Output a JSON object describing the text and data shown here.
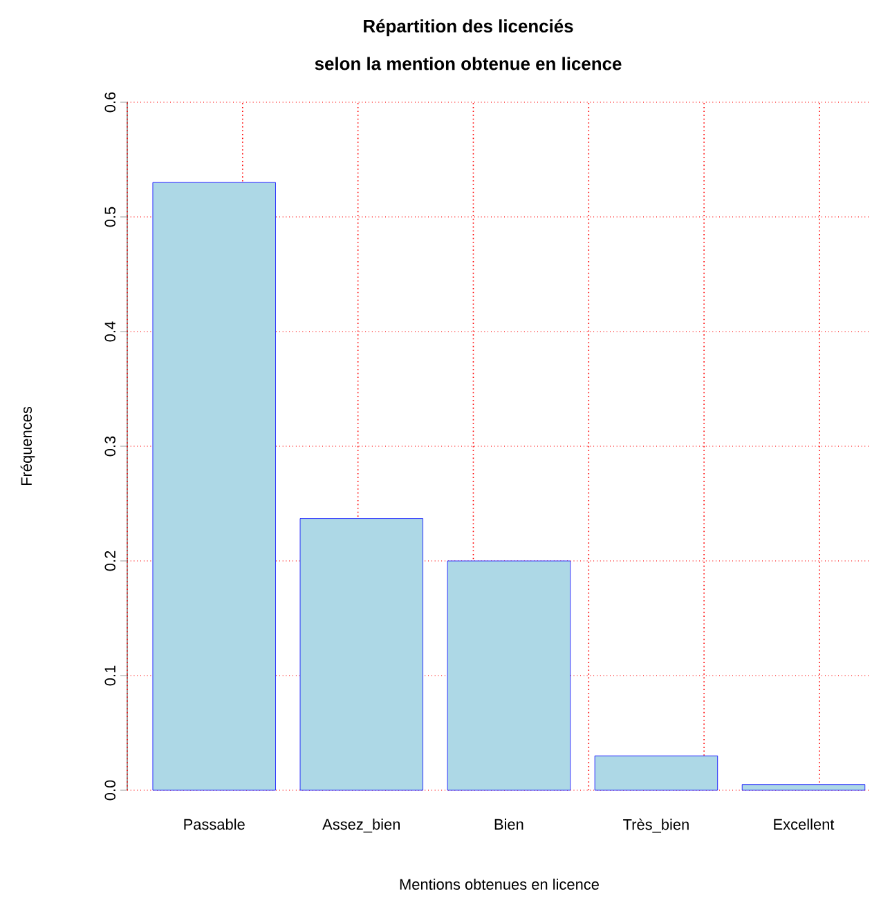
{
  "chart_data": {
    "type": "bar",
    "title": "Répartition des licenciés",
    "subtitle": "selon la mention obtenue en licence",
    "xlabel": "Mentions obtenues en licence",
    "ylabel": "Fréquences",
    "categories": [
      "Passable",
      "Assez_bien",
      "Bien",
      "Très_bien",
      "Excellent"
    ],
    "values": [
      0.53,
      0.237,
      0.2,
      0.03,
      0.005
    ],
    "color": "#add8e6",
    "ylim": [
      0,
      0.6
    ],
    "yticks": [
      {
        "value": 0,
        "label": "0.0"
      },
      0.1,
      0.2,
      0.3,
      0.4,
      0.5,
      0.6
    ],
    "grid": true
  }
}
